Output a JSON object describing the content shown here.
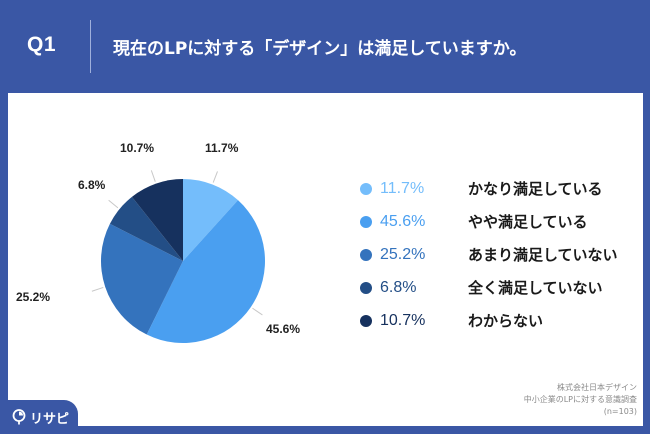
{
  "header": {
    "question_number": "Q1",
    "title": "現在のLPに対する「デザイン」は満足していますか。"
  },
  "colors": {
    "background": "#3a57a5",
    "panel": "#ffffff",
    "slice_1": "#74bdfb",
    "slice_2": "#4a9ff0",
    "slice_3": "#3473bd",
    "slice_4": "#234e86",
    "slice_5": "#16315e"
  },
  "chart_data": {
    "type": "pie",
    "title": "現在のLPに対する「デザイン」は満足していますか。",
    "categories": [
      "かなり満足している",
      "やや満足している",
      "あまり満足していない",
      "全く満足していない",
      "わからない"
    ],
    "values": [
      11.7,
      45.6,
      25.2,
      6.8,
      10.7
    ],
    "unit": "%",
    "start_angle": "12 o'clock, clockwise",
    "legend_position": "right"
  },
  "pie_labels": {
    "s1": "11.7%",
    "s2": "45.6%",
    "s3": "25.2%",
    "s4": "6.8%",
    "s5": "10.7%"
  },
  "legend": [
    {
      "pct": "11.7%",
      "label": "かなり満足している",
      "color": "#74bdfb"
    },
    {
      "pct": "45.6%",
      "label": "やや満足している",
      "color": "#4a9ff0"
    },
    {
      "pct": "25.2%",
      "label": "あまり満足していない",
      "color": "#3473bd"
    },
    {
      "pct": "6.8%",
      "label": "全く満足していない",
      "color": "#234e86"
    },
    {
      "pct": "10.7%",
      "label": "わからない",
      "color": "#16315e"
    }
  ],
  "source": {
    "line1": "株式会社日本デザイン",
    "line2": "中小企業のLPに対する意識調査",
    "line3": "(n=103)"
  },
  "brand": {
    "name": "リサピー",
    "icon": "magnifier-pie-icon"
  }
}
